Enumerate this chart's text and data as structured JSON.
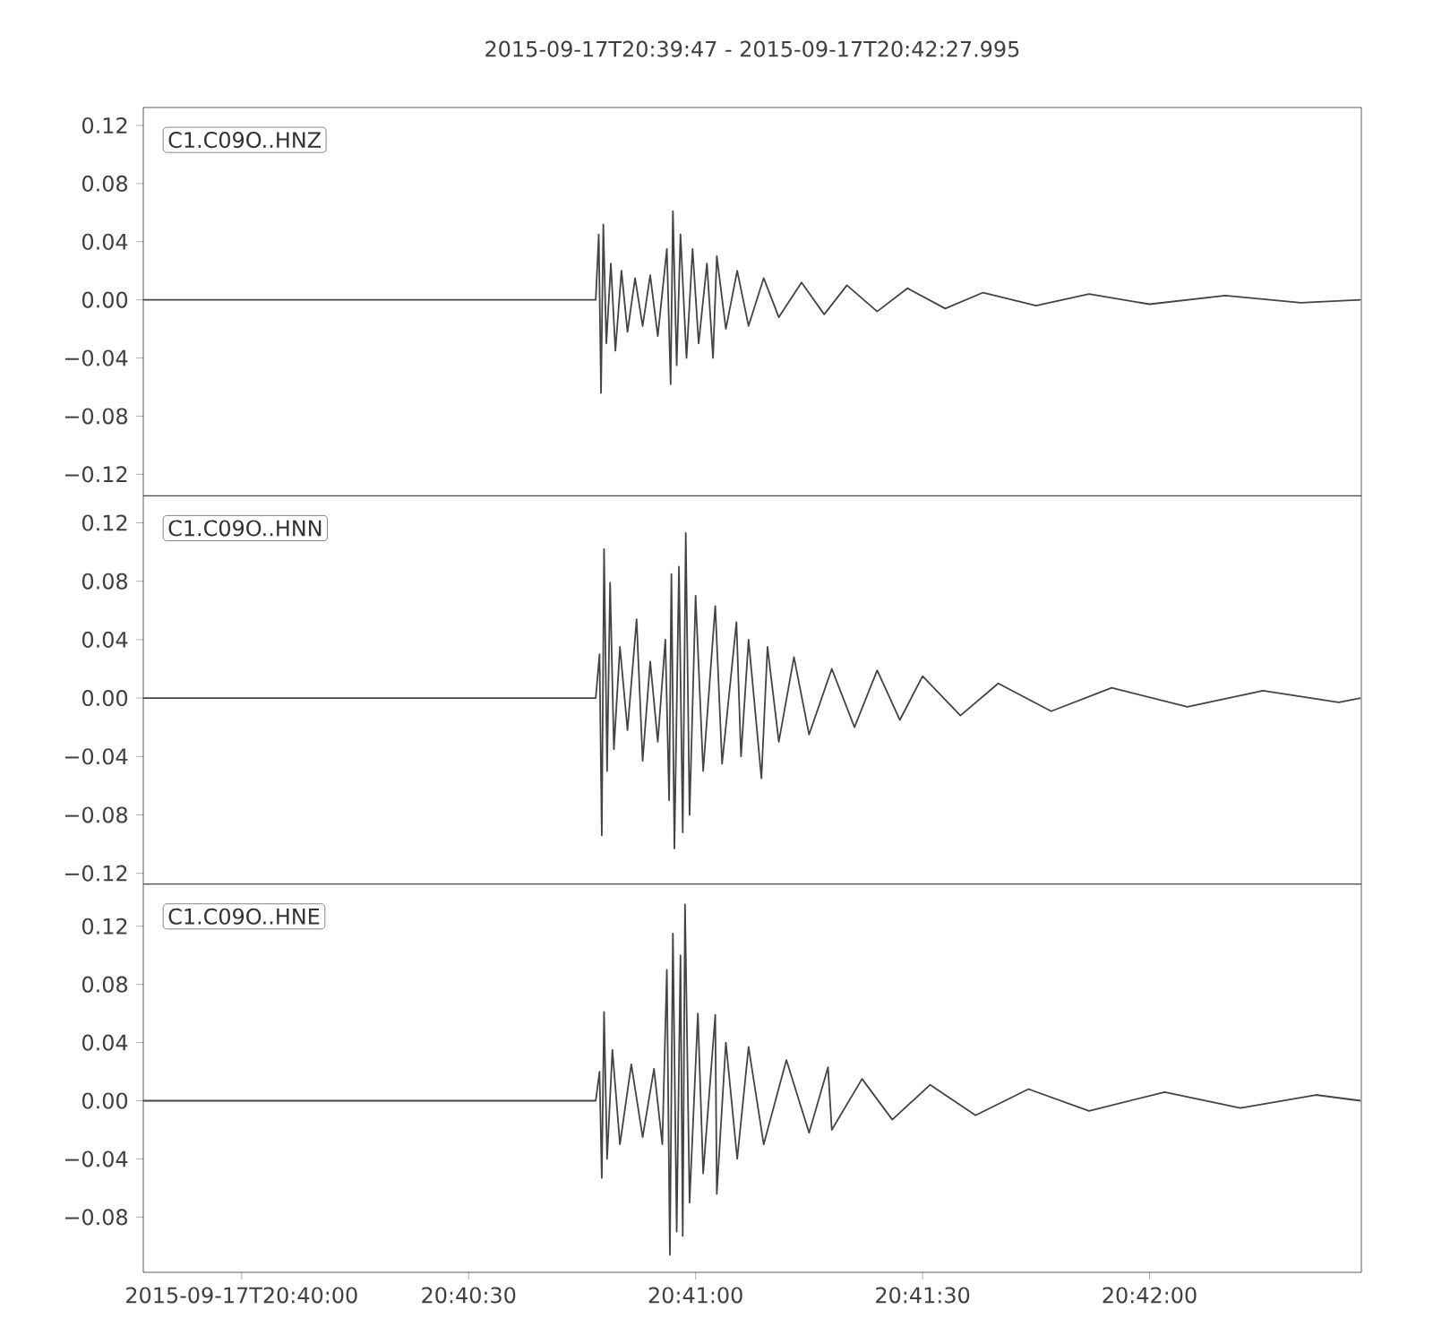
{
  "chart_data": [
    {
      "type": "line",
      "title": "2015-09-17T20:39:47  -  2015-09-17T20:42:27.995",
      "annotations": [
        "C1.C09O..HNZ"
      ],
      "tick_labels": "y",
      "xlim": [
        74387,
        74547.995
      ],
      "ylim": [
        -0.1348,
        0.1323
      ],
      "yticks": [
        {
          "value": -0.12,
          "label": "−0.12"
        },
        {
          "value": -0.08,
          "label": "−0.08"
        },
        {
          "value": -0.04,
          "label": "−0.04"
        },
        {
          "value": 0,
          "label": "0.00"
        },
        0.04,
        0.08,
        0.12
      ],
      "series": [
        {
          "color": "#444444",
          "x": [
            74387,
            74446.8,
            74447.2,
            74447.5,
            74447.8,
            74448.2,
            74448.8,
            74449.4,
            74450.2,
            74451,
            74452,
            74453,
            74454,
            74455,
            74456.2,
            74456.7,
            74457,
            74457.5,
            74458,
            74458.8,
            74459.6,
            74460.4,
            74461.5,
            74462.3,
            74462.8,
            74464,
            74465.5,
            74467,
            74469,
            74471,
            74474,
            74477,
            74480,
            74484,
            74488,
            74493,
            74498,
            74505,
            74512,
            74520,
            74530,
            74540,
            74547.9
          ],
          "values": [
            0,
            0,
            0.045,
            -0.064,
            0.052,
            -0.03,
            0.025,
            -0.035,
            0.02,
            -0.022,
            0.015,
            -0.018,
            0.017,
            -0.025,
            0.035,
            -0.058,
            0.061,
            -0.045,
            0.045,
            -0.04,
            0.035,
            -0.03,
            0.025,
            -0.04,
            0.03,
            -0.02,
            0.02,
            -0.018,
            0.015,
            -0.012,
            0.012,
            -0.01,
            0.01,
            -0.008,
            0.008,
            -0.006,
            0.005,
            -0.004,
            0.004,
            -0.003,
            0.003,
            -0.002,
            0
          ]
        }
      ]
    },
    {
      "type": "line",
      "annotations": [
        "C1.C09O..HNN"
      ],
      "tick_labels": "y",
      "xlim": [
        74387,
        74547.995
      ],
      "ylim": [
        -0.1274,
        0.1385
      ],
      "yticks": [
        {
          "value": -0.12,
          "label": "−0.12"
        },
        {
          "value": -0.08,
          "label": "−0.08"
        },
        {
          "value": -0.04,
          "label": "−0.04"
        },
        {
          "value": 0,
          "label": "0.00"
        },
        0.04,
        0.08,
        0.12
      ],
      "series": [
        {
          "color": "#444444",
          "x": [
            74387,
            74446.8,
            74447.3,
            74447.6,
            74447.9,
            74448.3,
            74448.7,
            74449.2,
            74450,
            74451,
            74452.2,
            74453,
            74454,
            74455,
            74456,
            74456.5,
            74456.8,
            74457.2,
            74457.8,
            74458.3,
            74458.7,
            74459.2,
            74460,
            74461,
            74462.6,
            74463.5,
            74465.4,
            74466,
            74467,
            74468.7,
            74469.5,
            74471,
            74473,
            74475,
            74478,
            74481,
            74484,
            74487,
            74490,
            74495,
            74500,
            74507,
            74515,
            74525,
            74535,
            74545,
            74547.9
          ],
          "values": [
            0,
            0,
            0.03,
            -0.094,
            0.102,
            -0.05,
            0.079,
            -0.035,
            0.035,
            -0.022,
            0.054,
            -0.043,
            0.025,
            -0.03,
            0.04,
            -0.07,
            0.085,
            -0.103,
            0.09,
            -0.092,
            0.113,
            -0.08,
            0.07,
            -0.05,
            0.063,
            -0.045,
            0.052,
            -0.04,
            0.04,
            -0.055,
            0.035,
            -0.03,
            0.028,
            -0.025,
            0.02,
            -0.02,
            0.019,
            -0.015,
            0.015,
            -0.012,
            0.01,
            -0.009,
            0.007,
            -0.006,
            0.005,
            -0.003,
            0
          ]
        }
      ]
    },
    {
      "type": "line",
      "annotations": [
        "C1.C09O..HNE"
      ],
      "xlim": [
        74387,
        74547.995
      ],
      "ylim": [
        -0.118,
        0.149
      ],
      "xticks": [
        {
          "value": 74400,
          "label": "2015-09-17T20:40:00"
        },
        {
          "value": 74430,
          "label": "20:40:30"
        },
        {
          "value": 74460,
          "label": "20:41:00"
        },
        {
          "value": 74490,
          "label": "20:41:30"
        },
        {
          "value": 74520,
          "label": "20:42:00"
        }
      ],
      "yticks": [
        {
          "value": -0.08,
          "label": "−0.08"
        },
        {
          "value": -0.04,
          "label": "−0.04"
        },
        {
          "value": 0,
          "label": "0.00"
        },
        0.04,
        0.08,
        0.12
      ],
      "series": [
        {
          "color": "#444444",
          "x": [
            74387,
            74446.8,
            74447.3,
            74447.6,
            74447.9,
            74448.3,
            74449,
            74450,
            74451.5,
            74453,
            74454.5,
            74455.6,
            74456.2,
            74456.6,
            74457,
            74457.5,
            74458,
            74458.3,
            74458.6,
            74459.2,
            74460.3,
            74461,
            74462.6,
            74462.8,
            74464,
            74465.5,
            74467,
            74469,
            74472,
            74475,
            74477.5,
            74478,
            74482,
            74486,
            74491,
            74497,
            74504,
            74512,
            74522,
            74532,
            74542,
            74547.9
          ],
          "values": [
            0,
            0,
            0.02,
            -0.053,
            0.061,
            -0.04,
            0.035,
            -0.03,
            0.025,
            -0.025,
            0.022,
            -0.03,
            0.09,
            -0.106,
            0.115,
            -0.09,
            0.1,
            -0.093,
            0.135,
            -0.07,
            0.06,
            -0.05,
            0.059,
            -0.064,
            0.04,
            -0.04,
            0.037,
            -0.03,
            0.028,
            -0.022,
            0.023,
            -0.02,
            0.015,
            -0.013,
            0.011,
            -0.01,
            0.008,
            -0.007,
            0.006,
            -0.005,
            0.004,
            0
          ]
        }
      ]
    }
  ]
}
